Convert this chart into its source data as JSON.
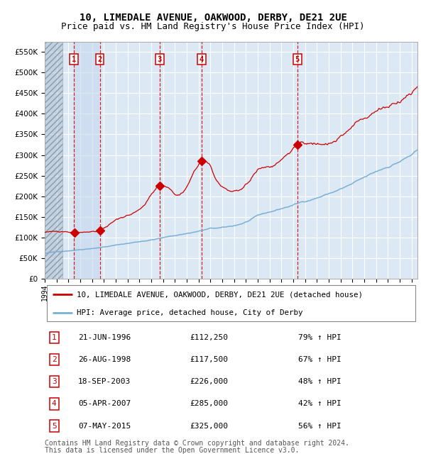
{
  "title": "10, LIMEDALE AVENUE, OAKWOOD, DERBY, DE21 2UE",
  "subtitle": "Price paid vs. HM Land Registry's House Price Index (HPI)",
  "red_label": "10, LIMEDALE AVENUE, OAKWOOD, DERBY, DE21 2UE (detached house)",
  "blue_label": "HPI: Average price, detached house, City of Derby",
  "footer_line1": "Contains HM Land Registry data © Crown copyright and database right 2024.",
  "footer_line2": "This data is licensed under the Open Government Licence v3.0.",
  "sales": [
    {
      "num": 1,
      "date_str": "21-JUN-1996",
      "price": 112250,
      "year": 1996.47,
      "pct": "79%",
      "dir": "↑"
    },
    {
      "num": 2,
      "date_str": "26-AUG-1998",
      "price": 117500,
      "year": 1998.65,
      "pct": "67%",
      "dir": "↑"
    },
    {
      "num": 3,
      "date_str": "18-SEP-2003",
      "price": 226000,
      "year": 2003.71,
      "pct": "48%",
      "dir": "↑"
    },
    {
      "num": 4,
      "date_str": "05-APR-2007",
      "price": 285000,
      "year": 2007.26,
      "pct": "42%",
      "dir": "↑"
    },
    {
      "num": 5,
      "date_str": "07-MAY-2015",
      "price": 325000,
      "year": 2015.35,
      "pct": "56%",
      "dir": "↑"
    }
  ],
  "ylim": [
    0,
    575000
  ],
  "xlim_start": 1994.0,
  "xlim_end": 2025.5,
  "background_color": "#ffffff",
  "plot_bg_color": "#dce9f5",
  "grid_color": "#ffffff",
  "red_line_color": "#cc0000",
  "blue_line_color": "#7ab0d4",
  "sale_marker_color": "#cc0000",
  "vline_color": "#cc0000",
  "title_fontsize": 10,
  "subtitle_fontsize": 9,
  "footer_fontsize": 7
}
